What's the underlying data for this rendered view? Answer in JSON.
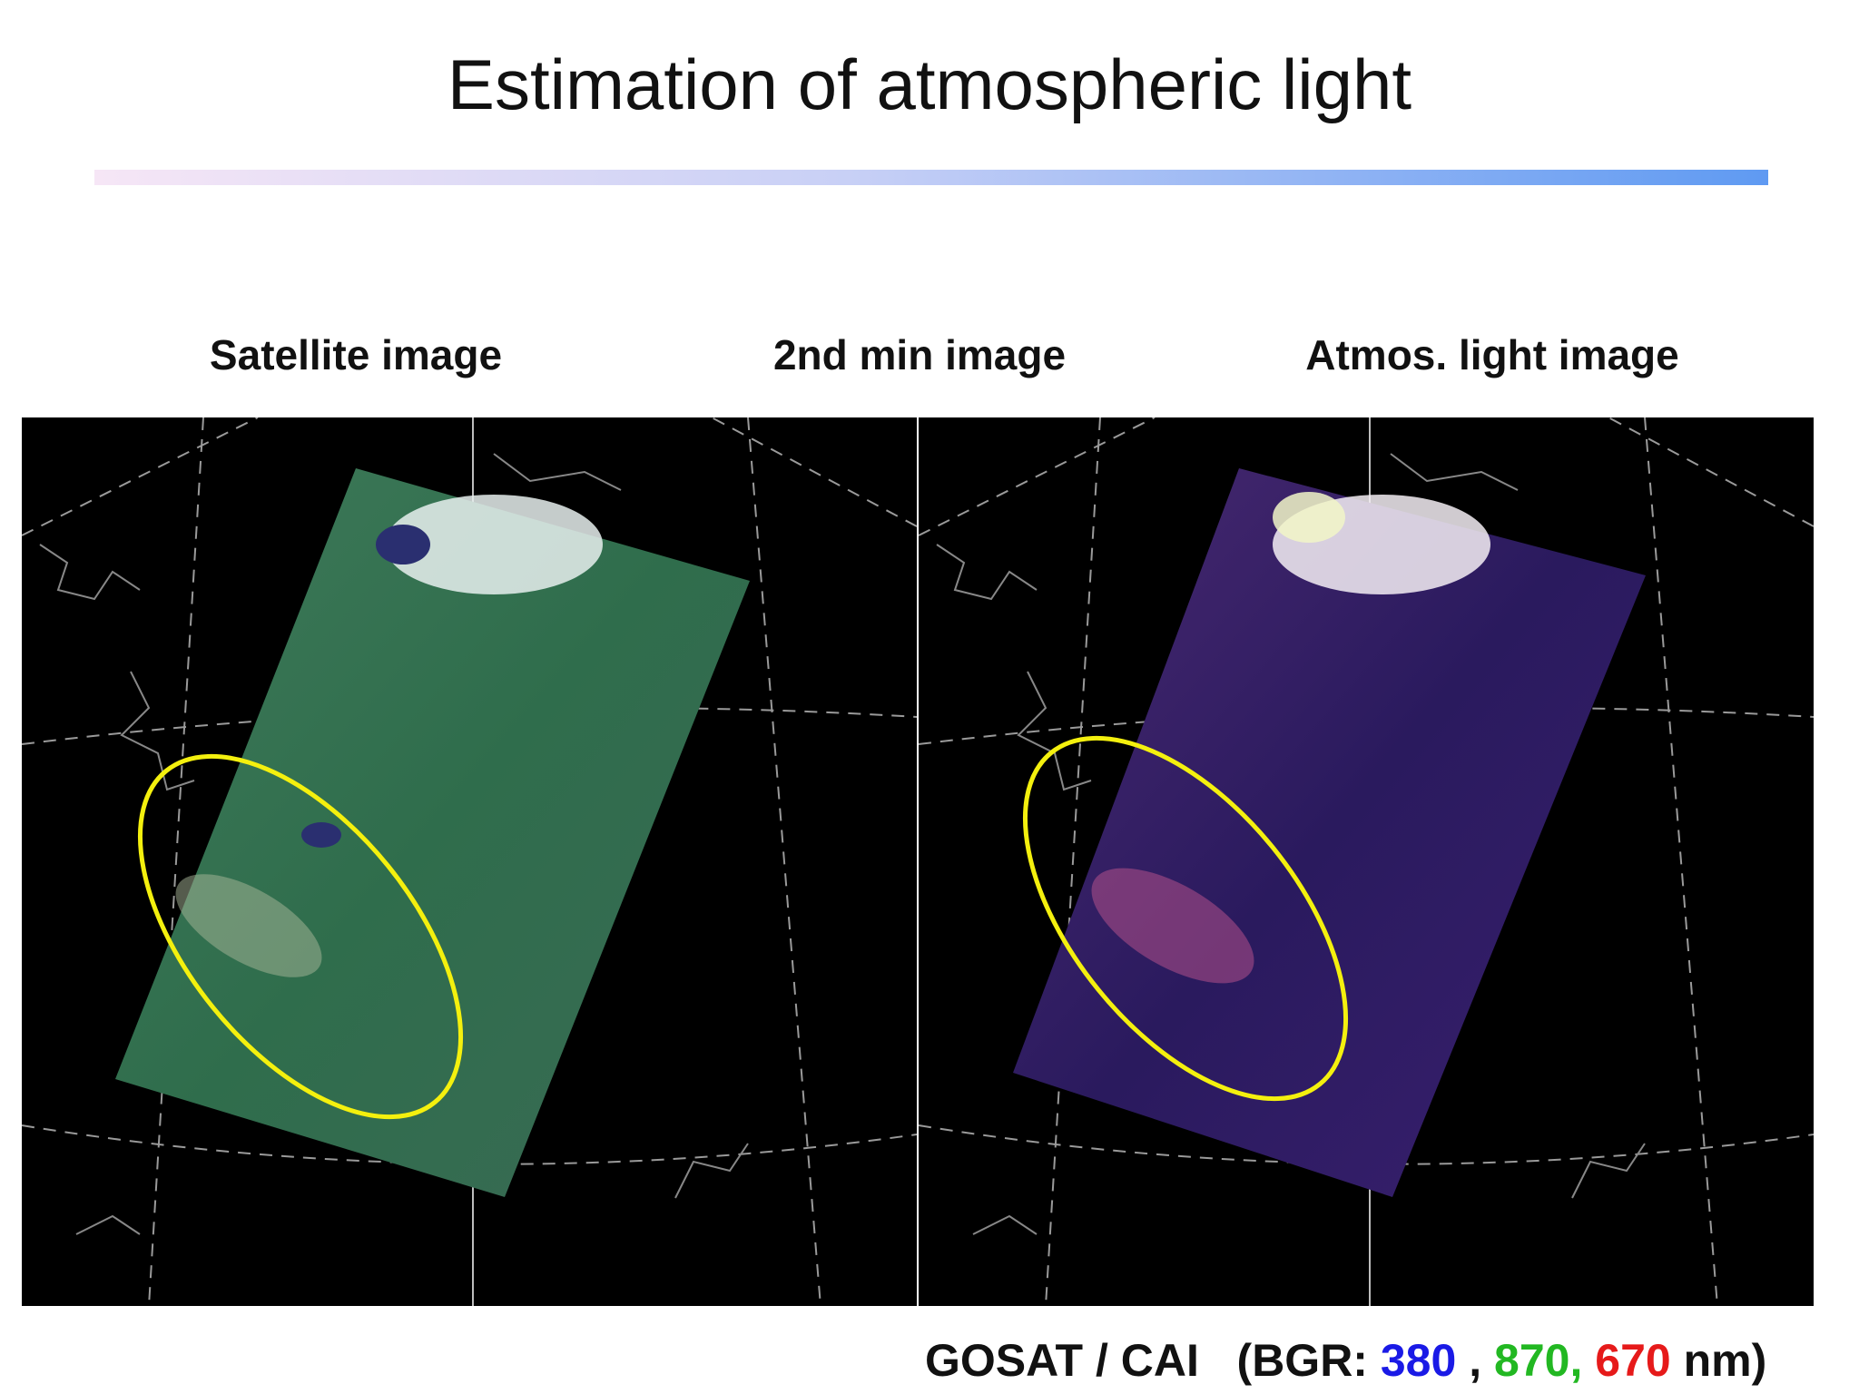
{
  "header": {
    "title": "Estimation of atmospheric light"
  },
  "panels": [
    {
      "label": "Satellite image"
    },
    {
      "label": "2nd min image"
    },
    {
      "label": "Atmos. light image"
    }
  ],
  "footer": {
    "source": "GOSAT / CAI",
    "prefix": "(BGR:",
    "blue": "380",
    "sep1": ",",
    "green": "870,",
    "red": "670",
    "suffix": "nm)"
  }
}
